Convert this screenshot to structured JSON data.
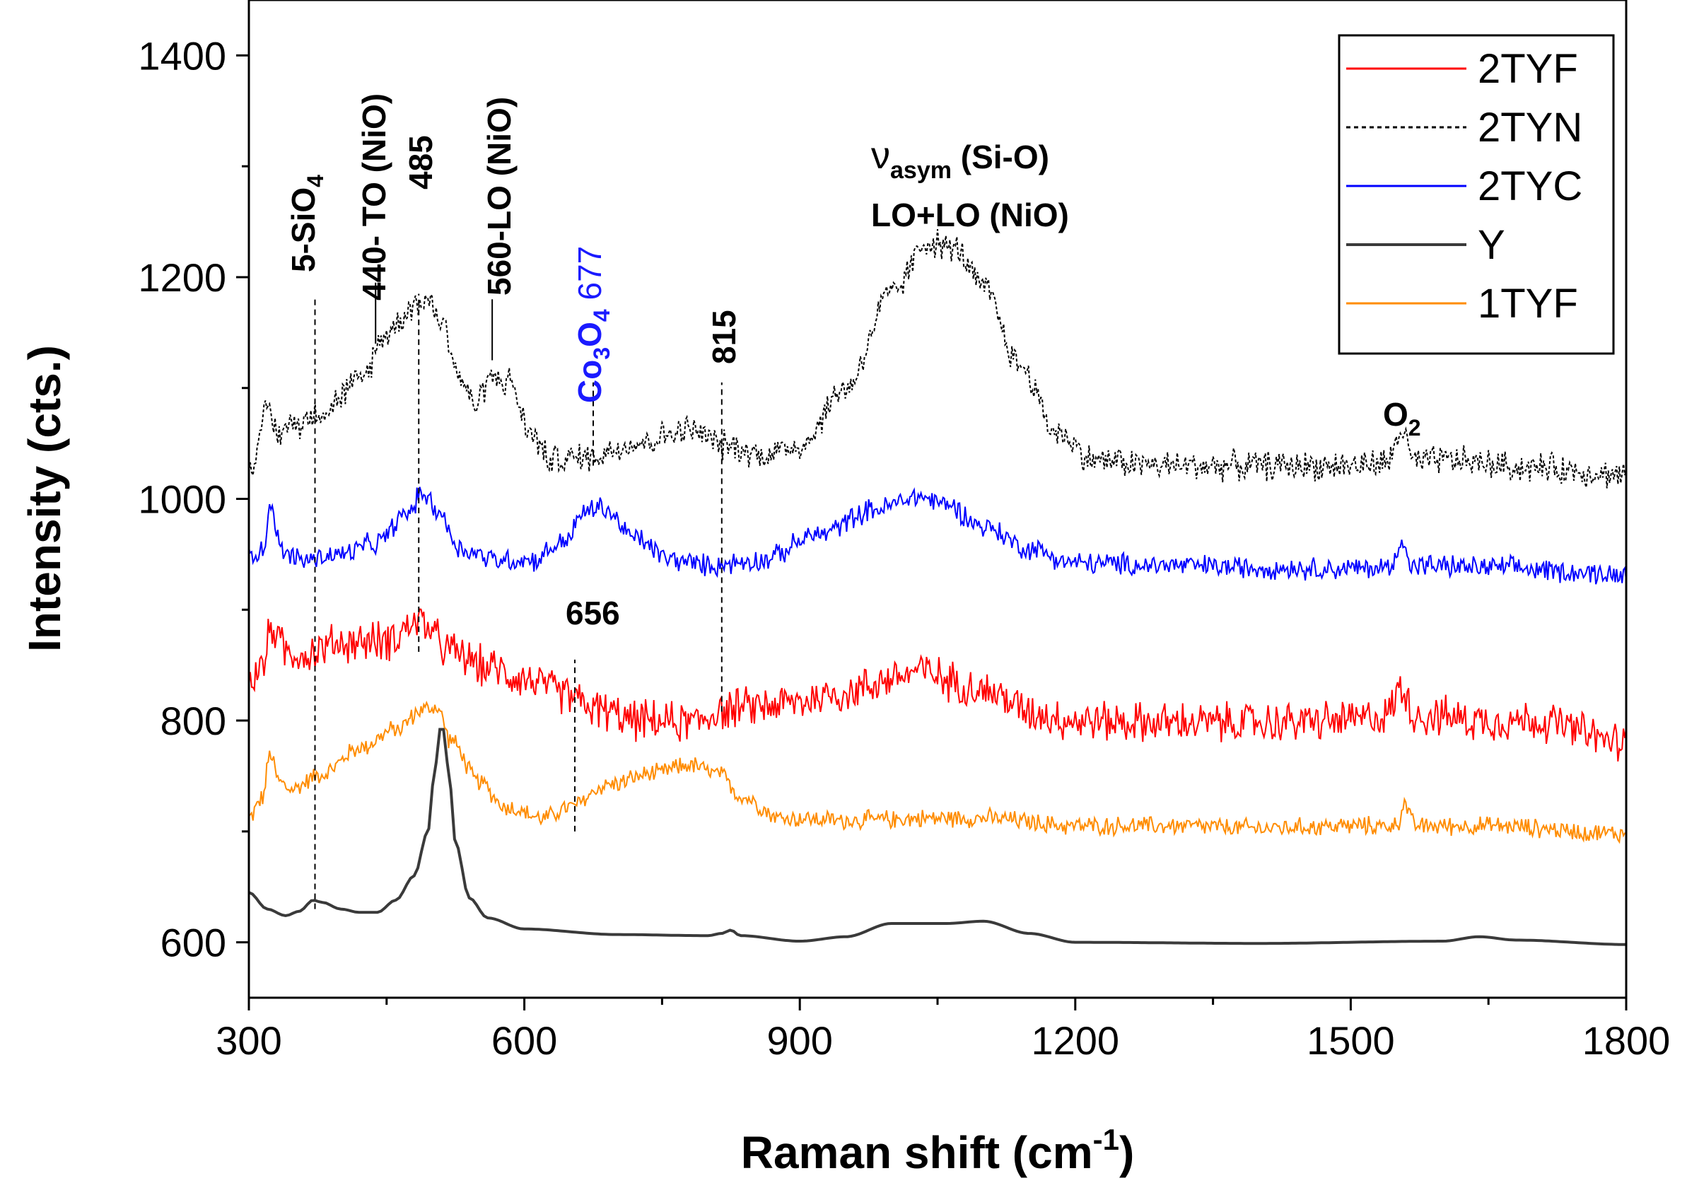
{
  "chart_data": {
    "type": "line",
    "title": "",
    "xlabel": "Raman shift (cm",
    "xlabel_sup": "-1",
    "xlabel_end": ")",
    "ylabel": "Intensity (cts.)",
    "xlim": [
      300,
      1800
    ],
    "ylim": [
      550,
      1450
    ],
    "xticks": [
      300,
      600,
      900,
      1200,
      1500,
      1800
    ],
    "yticks": [
      600,
      800,
      1000,
      1200,
      1400
    ],
    "legend_position": "top-right",
    "series": [
      {
        "name": "2TYF",
        "color": "#ff0000",
        "style": "solid",
        "noise": 22,
        "points": [
          [
            300,
            835
          ],
          [
            315,
            850
          ],
          [
            325,
            885
          ],
          [
            340,
            862
          ],
          [
            360,
            860
          ],
          [
            400,
            870
          ],
          [
            450,
            872
          ],
          [
            485,
            890
          ],
          [
            520,
            862
          ],
          [
            560,
            848
          ],
          [
            600,
            838
          ],
          [
            640,
            825
          ],
          [
            680,
            810
          ],
          [
            720,
            800
          ],
          [
            780,
            798
          ],
          [
            820,
            810
          ],
          [
            880,
            815
          ],
          [
            950,
            825
          ],
          [
            1000,
            838
          ],
          [
            1030,
            845
          ],
          [
            1070,
            835
          ],
          [
            1110,
            825
          ],
          [
            1150,
            808
          ],
          [
            1200,
            800
          ],
          [
            1300,
            798
          ],
          [
            1400,
            798
          ],
          [
            1500,
            800
          ],
          [
            1540,
            805
          ],
          [
            1555,
            830
          ],
          [
            1570,
            805
          ],
          [
            1650,
            800
          ],
          [
            1700,
            800
          ],
          [
            1800,
            780
          ]
        ]
      },
      {
        "name": "2TYN",
        "color": "#000000",
        "style": "dashed",
        "noise": 16,
        "points": [
          [
            300,
            1030
          ],
          [
            310,
            1045
          ],
          [
            320,
            1085
          ],
          [
            330,
            1060
          ],
          [
            350,
            1068
          ],
          [
            380,
            1080
          ],
          [
            420,
            1105
          ],
          [
            450,
            1150
          ],
          [
            480,
            1175
          ],
          [
            495,
            1180
          ],
          [
            510,
            1160
          ],
          [
            530,
            1110
          ],
          [
            545,
            1085
          ],
          [
            565,
            1110
          ],
          [
            585,
            1105
          ],
          [
            605,
            1060
          ],
          [
            630,
            1035
          ],
          [
            670,
            1038
          ],
          [
            720,
            1050
          ],
          [
            780,
            1062
          ],
          [
            820,
            1048
          ],
          [
            860,
            1040
          ],
          [
            900,
            1048
          ],
          [
            950,
            1100
          ],
          [
            1000,
            1185
          ],
          [
            1040,
            1232
          ],
          [
            1070,
            1225
          ],
          [
            1100,
            1190
          ],
          [
            1140,
            1120
          ],
          [
            1180,
            1060
          ],
          [
            1220,
            1035
          ],
          [
            1300,
            1030
          ],
          [
            1400,
            1030
          ],
          [
            1500,
            1030
          ],
          [
            1540,
            1032
          ],
          [
            1555,
            1062
          ],
          [
            1570,
            1032
          ],
          [
            1600,
            1035
          ],
          [
            1700,
            1028
          ],
          [
            1800,
            1022
          ]
        ]
      },
      {
        "name": "2TYC",
        "color": "#0000ff",
        "style": "solid",
        "noise": 12,
        "points": [
          [
            300,
            950
          ],
          [
            315,
            955
          ],
          [
            325,
            995
          ],
          [
            335,
            952
          ],
          [
            360,
            945
          ],
          [
            400,
            950
          ],
          [
            440,
            960
          ],
          [
            470,
            985
          ],
          [
            490,
            1005
          ],
          [
            505,
            990
          ],
          [
            530,
            955
          ],
          [
            570,
            945
          ],
          [
            610,
            945
          ],
          [
            640,
            960
          ],
          [
            670,
            990
          ],
          [
            685,
            992
          ],
          [
            720,
            965
          ],
          [
            760,
            945
          ],
          [
            800,
            940
          ],
          [
            860,
            945
          ],
          [
            920,
            968
          ],
          [
            980,
            990
          ],
          [
            1030,
            1002
          ],
          [
            1060,
            995
          ],
          [
            1100,
            975
          ],
          [
            1150,
            955
          ],
          [
            1200,
            942
          ],
          [
            1300,
            940
          ],
          [
            1400,
            938
          ],
          [
            1500,
            937
          ],
          [
            1545,
            938
          ],
          [
            1555,
            965
          ],
          [
            1565,
            940
          ],
          [
            1650,
            938
          ],
          [
            1800,
            932
          ]
        ]
      },
      {
        "name": "Y",
        "color": "#3a3a3a",
        "style": "solid",
        "noise": 0,
        "points": [
          [
            300,
            645
          ],
          [
            320,
            630
          ],
          [
            340,
            624
          ],
          [
            355,
            628
          ],
          [
            370,
            638
          ],
          [
            380,
            636
          ],
          [
            400,
            630
          ],
          [
            420,
            627
          ],
          [
            440,
            627
          ],
          [
            460,
            638
          ],
          [
            480,
            660
          ],
          [
            495,
            700
          ],
          [
            503,
            760
          ],
          [
            510,
            800
          ],
          [
            517,
            760
          ],
          [
            525,
            690
          ],
          [
            540,
            640
          ],
          [
            560,
            622
          ],
          [
            600,
            612
          ],
          [
            700,
            607
          ],
          [
            800,
            606
          ],
          [
            815,
            608
          ],
          [
            825,
            611
          ],
          [
            835,
            606
          ],
          [
            900,
            601
          ],
          [
            950,
            605
          ],
          [
            1000,
            617
          ],
          [
            1030,
            617
          ],
          [
            1060,
            617
          ],
          [
            1100,
            619
          ],
          [
            1150,
            608
          ],
          [
            1200,
            600
          ],
          [
            1400,
            599
          ],
          [
            1600,
            601
          ],
          [
            1640,
            605
          ],
          [
            1680,
            602
          ],
          [
            1800,
            598
          ]
        ]
      },
      {
        "name": "1TYF",
        "color": "#ff8c00",
        "style": "solid",
        "noise": 10,
        "points": [
          [
            300,
            712
          ],
          [
            315,
            730
          ],
          [
            323,
            770
          ],
          [
            333,
            745
          ],
          [
            345,
            738
          ],
          [
            380,
            752
          ],
          [
            420,
            775
          ],
          [
            460,
            792
          ],
          [
            490,
            810
          ],
          [
            505,
            812
          ],
          [
            520,
            782
          ],
          [
            550,
            745
          ],
          [
            580,
            722
          ],
          [
            620,
            712
          ],
          [
            650,
            722
          ],
          [
            690,
            742
          ],
          [
            740,
            752
          ],
          [
            780,
            760
          ],
          [
            810,
            752
          ],
          [
            840,
            730
          ],
          [
            880,
            712
          ],
          [
            950,
            710
          ],
          [
            1050,
            712
          ],
          [
            1100,
            712
          ],
          [
            1200,
            705
          ],
          [
            1300,
            705
          ],
          [
            1400,
            703
          ],
          [
            1500,
            705
          ],
          [
            1550,
            705
          ],
          [
            1558,
            725
          ],
          [
            1570,
            705
          ],
          [
            1650,
            705
          ],
          [
            1800,
            698
          ]
        ]
      }
    ],
    "vlines": [
      {
        "x": 372,
        "from": 630,
        "to": 1180,
        "style": "dashed"
      },
      {
        "x": 485,
        "from": 862,
        "to": 1185,
        "style": "dashed"
      },
      {
        "x": 655,
        "from": 700,
        "to": 855,
        "style": "dashed"
      },
      {
        "x": 815,
        "from": 808,
        "to": 1105,
        "style": "dashed"
      },
      {
        "x": 675,
        "from": 1030,
        "to": 1105,
        "style": "dashed"
      },
      {
        "x": 438,
        "from": 1140,
        "to": 1195,
        "style": "solid"
      },
      {
        "x": 565,
        "from": 1125,
        "to": 1180,
        "style": "solid"
      }
    ],
    "annotations": {
      "sio4_main": "5-SiO",
      "sio4_sub": "4",
      "to_nio": "440- TO (NiO)",
      "peak_485": "485",
      "lo_nio": "560-LO (NiO)",
      "co_1": "Co",
      "co_sub1": "3",
      "co_2": "O",
      "co_sub2": "4",
      "co_val": " 677",
      "peak_815": "815",
      "peak_656": "656",
      "nu": "ν",
      "nu_sub": "asym",
      "nu_rest": " (Si-O)",
      "lolo": "LO+LO (NiO)",
      "o2_main": "O",
      "o2_sub": "2"
    }
  }
}
